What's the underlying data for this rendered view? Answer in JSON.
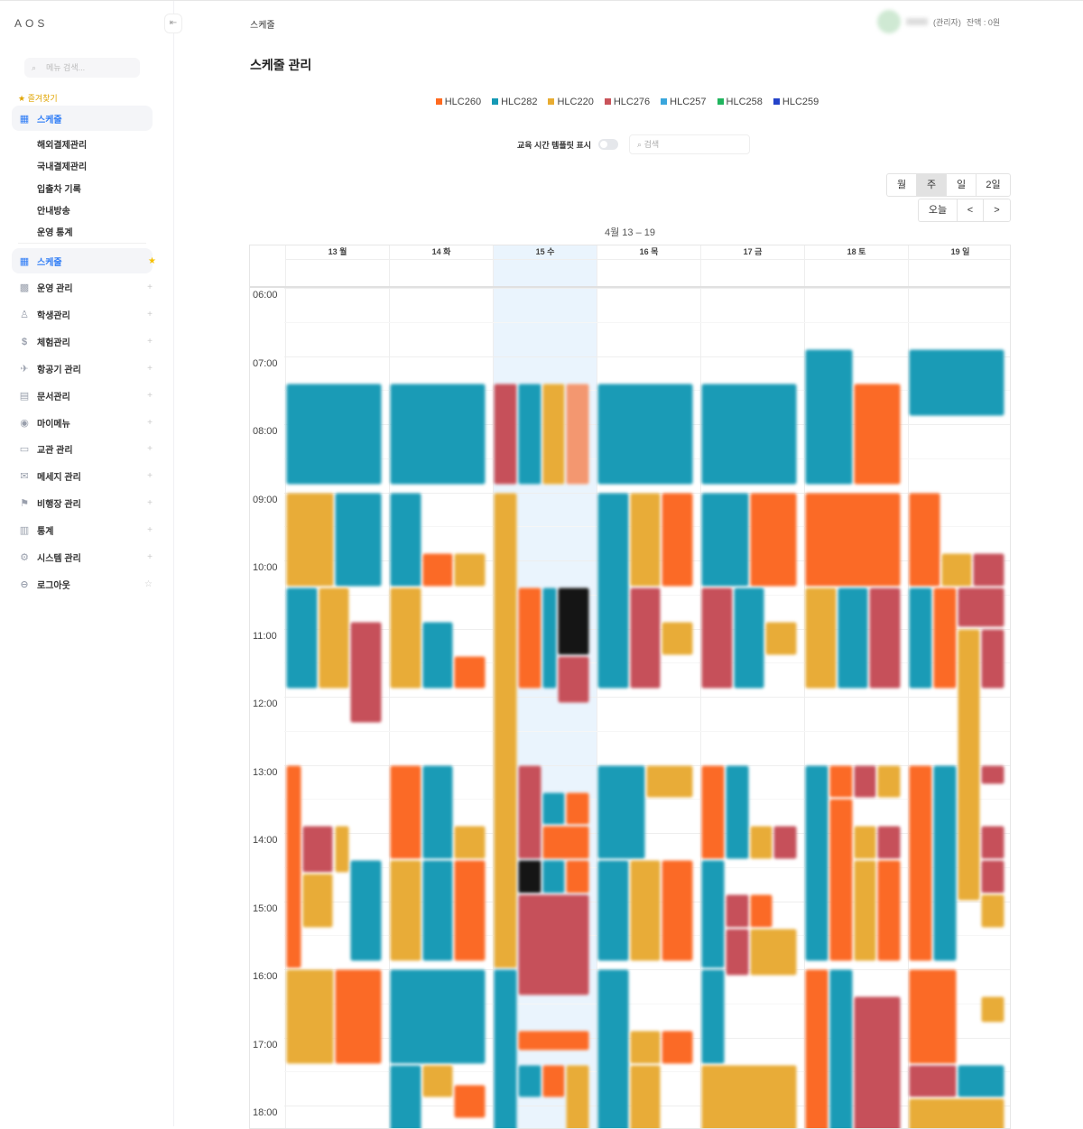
{
  "sidebar": {
    "logo": "AOS",
    "search_placeholder": "메뉴 검색...",
    "favorites_title": "★ 즐겨찾기",
    "fav_item": "스케줄",
    "fav_subitems": [
      "해외결제관리",
      "국내결제관리",
      "입출차 기록",
      "안내방송",
      "운영 통계"
    ],
    "menu": [
      {
        "label": "스케줄",
        "icon": "calendar-icon"
      },
      {
        "label": "운영 관리",
        "icon": "grid-icon"
      },
      {
        "label": "학생관리",
        "icon": "user-icon"
      },
      {
        "label": "체험관리",
        "icon": "dollar-icon"
      },
      {
        "label": "항공기 관리",
        "icon": "airplane-icon"
      },
      {
        "label": "문서관리",
        "icon": "document-icon"
      },
      {
        "label": "마이메뉴",
        "icon": "profile-icon"
      },
      {
        "label": "교관 관리",
        "icon": "clipboard-icon"
      },
      {
        "label": "메세지 관리",
        "icon": "message-icon"
      },
      {
        "label": "비행장 관리",
        "icon": "flag-icon"
      },
      {
        "label": "통계",
        "icon": "chart-icon"
      },
      {
        "label": "시스템 관리",
        "icon": "gear-icon"
      },
      {
        "label": "로그아웃",
        "icon": "lock-icon"
      }
    ]
  },
  "header": {
    "breadcrumb": "스케줄",
    "role": "(관리자)",
    "balance": "잔액 : 0원"
  },
  "page": {
    "title": "스케줄 관리"
  },
  "legend": [
    {
      "label": "HLC260",
      "color": "#ff6a1f"
    },
    {
      "label": "HLC282",
      "color": "#1599b5"
    },
    {
      "label": "HLC220",
      "color": "#e8ac32"
    },
    {
      "label": "HLC276",
      "color": "#c9535a"
    },
    {
      "label": "HLC257",
      "color": "#3aa6dc"
    },
    {
      "label": "HLC258",
      "color": "#20b55e"
    },
    {
      "label": "HLC259",
      "color": "#2443c9"
    }
  ],
  "controls": {
    "template_toggle_label": "교육 시간 템플릿 표시",
    "search_placeholder": "검색",
    "views": [
      "월",
      "주",
      "일",
      "2일"
    ],
    "active_view": "주",
    "today": "오늘",
    "prev": "<",
    "next": ">"
  },
  "calendar": {
    "range": "4월 13 – 19",
    "days": [
      "13 월",
      "14 화",
      "15 수",
      "16 목",
      "17 금",
      "18 토",
      "19 일"
    ],
    "today_index": 2,
    "hours": [
      "06:00",
      "07:00",
      "08:00",
      "09:00",
      "10:00",
      "11:00",
      "12:00",
      "13:00",
      "14:00",
      "15:00",
      "16:00",
      "17:00",
      "18:00"
    ]
  }
}
